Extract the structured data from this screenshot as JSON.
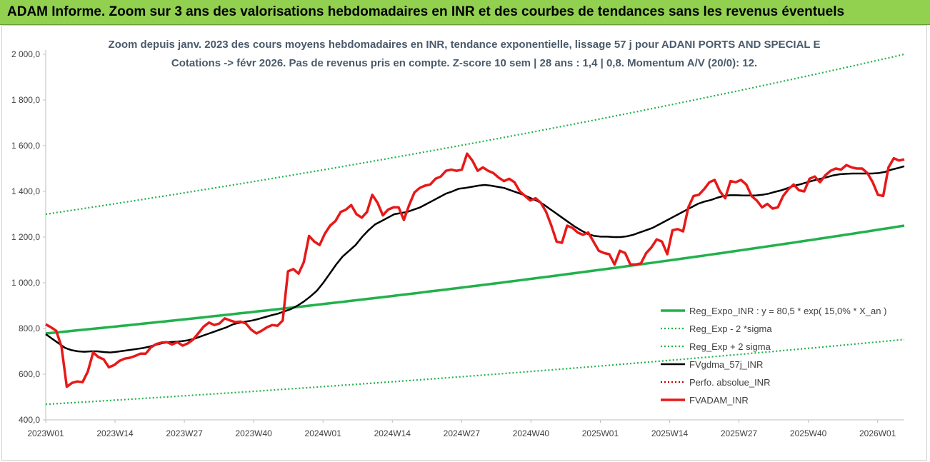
{
  "header": {
    "title": "ADAM Informe. Zoom sur 3 ans des valorisations hebdomadaires en INR et des courbes de tendances sans les revenus éventuels"
  },
  "colors": {
    "banner": "#92d050",
    "trend": "#22b14c",
    "price": "#e81818",
    "smooth": "#000000",
    "perf": "#c00000"
  },
  "chart_data": {
    "type": "line",
    "title": "Zoom depuis janv. 2023 des cours moyens hebdomadaires en INR, tendance exponentielle, lissage 57 j pour ADANI PORTS AND SPECIAL E",
    "subtitle": "Cotations -> févr 2026. Pas de revenus pris en compte. Z-score 10 sem | 28 ans : 1,4 | 0,8. Momentum A/V (20/0): 12.",
    "xlabel": "",
    "ylabel": "",
    "ylim": [
      400,
      2000
    ],
    "yticks": [
      "400,0",
      "600,0",
      "800,0",
      "1 000,0",
      "1 200,0",
      "1 400,0",
      "1 600,0",
      "1 800,0",
      "2 000,0"
    ],
    "xticks": [
      "2023W01",
      "2023W14",
      "2023W27",
      "2023W40",
      "2024W01",
      "2024W14",
      "2024W27",
      "2024W40",
      "2025W01",
      "2025W14",
      "2025W27",
      "2025W40",
      "2026W01"
    ],
    "legend_position": "right",
    "series": [
      {
        "name": "Reg_Expo_INR : y = 80,5 * exp( 15,0% *  X_an )",
        "style": "solid-thick",
        "color": "#22b14c",
        "start": 778,
        "end": 1250
      },
      {
        "name": "Reg_Exp - 2 *sigma",
        "style": "dotted",
        "color": "#22b14c",
        "start": 1300,
        "end": 2000,
        "cap": 2000
      },
      {
        "name": "Reg_Exp + 2 sigma",
        "style": "dotted",
        "color": "#22b14c",
        "start": 468,
        "end": 752
      },
      {
        "name": "FVgdma_57j_INR",
        "style": "solid",
        "color": "#000000",
        "values": [
          775,
          755,
          735,
          715,
          705,
          700,
          698,
          700,
          700,
          697,
          695,
          698,
          702,
          706,
          710,
          714,
          720,
          728,
          735,
          740,
          742,
          744,
          748,
          755,
          765,
          775,
          785,
          795,
          805,
          818,
          825,
          830,
          835,
          842,
          850,
          858,
          865,
          875,
          885,
          900,
          918,
          940,
          965,
          1000,
          1040,
          1080,
          1115,
          1140,
          1165,
          1200,
          1230,
          1255,
          1270,
          1285,
          1300,
          1305,
          1310,
          1320,
          1330,
          1345,
          1360,
          1375,
          1390,
          1400,
          1412,
          1415,
          1420,
          1425,
          1428,
          1425,
          1420,
          1415,
          1405,
          1395,
          1385,
          1372,
          1360,
          1345,
          1325,
          1305,
          1285,
          1265,
          1245,
          1228,
          1213,
          1205,
          1202,
          1202,
          1200,
          1200,
          1203,
          1210,
          1220,
          1230,
          1240,
          1255,
          1270,
          1285,
          1300,
          1315,
          1330,
          1345,
          1355,
          1362,
          1372,
          1380,
          1383,
          1383,
          1382,
          1382,
          1382,
          1385,
          1390,
          1398,
          1405,
          1415,
          1425,
          1432,
          1440,
          1448,
          1455,
          1462,
          1470,
          1475,
          1477,
          1478,
          1478,
          1478,
          1478,
          1480,
          1485,
          1495,
          1502,
          1510
        ]
      },
      {
        "name": "Perfo. absolue_INR",
        "style": "dotted",
        "color": "#c00000"
      },
      {
        "name": "FVADAM_INR",
        "style": "solid-thick",
        "color": "#e81818",
        "values": [
          818,
          805,
          790,
          720,
          545,
          562,
          568,
          565,
          612,
          695,
          675,
          665,
          630,
          640,
          658,
          668,
          672,
          680,
          690,
          690,
          718,
          732,
          738,
          740,
          730,
          740,
          725,
          735,
          752,
          780,
          808,
          826,
          815,
          822,
          844,
          835,
          828,
          830,
          822,
          795,
          778,
          790,
          805,
          815,
          812,
          835,
          1050,
          1060,
          1040,
          1090,
          1205,
          1180,
          1165,
          1215,
          1250,
          1270,
          1310,
          1320,
          1340,
          1300,
          1285,
          1310,
          1385,
          1350,
          1295,
          1320,
          1330,
          1330,
          1275,
          1340,
          1395,
          1415,
          1425,
          1430,
          1455,
          1465,
          1490,
          1495,
          1490,
          1495,
          1565,
          1535,
          1490,
          1505,
          1490,
          1480,
          1460,
          1445,
          1455,
          1440,
          1400,
          1380,
          1360,
          1370,
          1350,
          1310,
          1250,
          1180,
          1175,
          1250,
          1240,
          1220,
          1210,
          1220,
          1180,
          1140,
          1130,
          1125,
          1080,
          1140,
          1130,
          1080,
          1080,
          1085,
          1130,
          1155,
          1190,
          1180,
          1125,
          1230,
          1235,
          1225,
          1330,
          1380,
          1385,
          1410,
          1440,
          1450,
          1400,
          1370,
          1445,
          1440,
          1450,
          1430,
          1380,
          1360,
          1330,
          1345,
          1325,
          1330,
          1380,
          1410,
          1430,
          1405,
          1400,
          1455,
          1465,
          1440,
          1470,
          1490,
          1500,
          1495,
          1515,
          1505,
          1500,
          1500,
          1480,
          1440,
          1385,
          1380,
          1505,
          1545,
          1535,
          1540
        ]
      }
    ]
  }
}
